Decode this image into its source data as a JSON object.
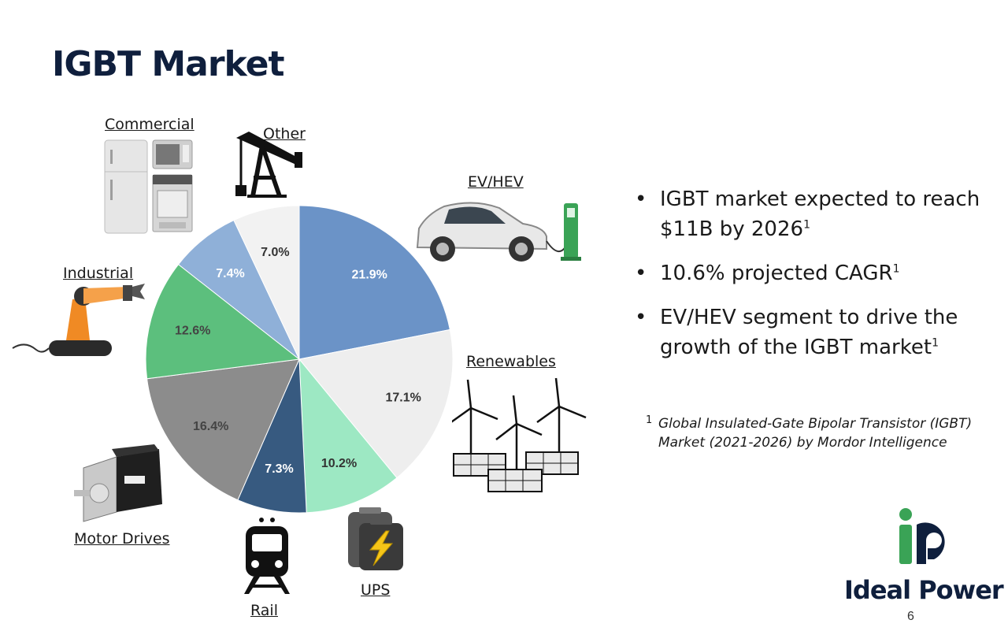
{
  "slide": {
    "title": "IGBT Market",
    "page_number": "6"
  },
  "category_labels": {
    "commercial": "Commercial",
    "other": "Other",
    "ev_hev": "EV/HEV",
    "industrial": "Industrial",
    "renewables": "Renewables",
    "motor_drives": "Motor Drives",
    "rail": "Rail",
    "ups": "UPS"
  },
  "bullets": [
    {
      "text": "IGBT market expected to reach $11B by 2026",
      "sup": "1"
    },
    {
      "text": "10.6% projected CAGR",
      "sup": "1"
    },
    {
      "text": "EV/HEV segment to drive the growth of the IGBT market",
      "sup": "1"
    }
  ],
  "footnote": {
    "mark": "1",
    "text": "Global Insulated-Gate Bipolar Transistor (IGBT) Market (2021-2026) by Mordor Intelligence"
  },
  "logo": {
    "text": "Ideal Power",
    "colors": {
      "navy": "#0f1f3d",
      "green": "#3aa356"
    }
  },
  "chart_data": {
    "type": "pie",
    "labels": [
      "EV/HEV",
      "Renewables",
      "UPS",
      "Rail",
      "Motor Drives",
      "Industrial",
      "Commercial",
      "Other"
    ],
    "values": [
      21.9,
      17.1,
      10.2,
      7.3,
      16.4,
      12.6,
      7.4,
      7.0
    ],
    "value_labels": [
      "21.9%",
      "17.1%",
      "10.2%",
      "7.3%",
      "16.4%",
      "12.6%",
      "7.4%",
      "7.0%"
    ],
    "colors": [
      "#6b93c7",
      "#eeeeee",
      "#9de8c3",
      "#375a80",
      "#8c8c8c",
      "#5cbf7d",
      "#8fb0d8",
      "#f2f2f2"
    ],
    "label_colors": [
      "#ffffff",
      "#333333",
      "#333333",
      "#ffffff",
      "#444444",
      "#444444",
      "#ffffff",
      "#333333"
    ],
    "start_angle_deg": 0,
    "direction": "clockwise"
  }
}
